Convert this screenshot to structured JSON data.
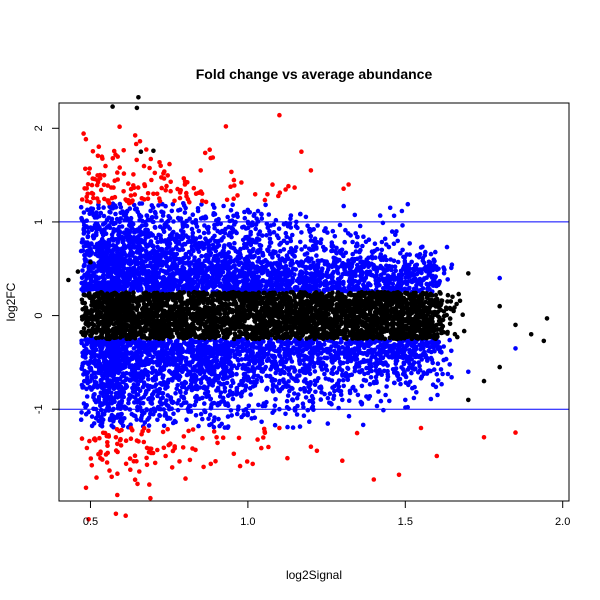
{
  "chart_data": {
    "type": "scatter",
    "title": "Fold change vs average abundance",
    "xlabel": "log2Signal",
    "ylabel": "log2FC",
    "xlim": [
      0.4,
      2.02
    ],
    "ylim": [
      -1.98,
      2.27
    ],
    "x_ticks": [
      "0.5",
      "1.0",
      "1.5",
      "2.0"
    ],
    "x_tick_values": [
      0.5,
      1.0,
      1.5,
      2.0
    ],
    "y_ticks": [
      "-1",
      "0",
      "1",
      "2"
    ],
    "y_tick_values": [
      -1,
      0,
      1,
      2
    ],
    "reference_lines": [
      {
        "axis": "y",
        "value": 1,
        "color": "#0000ff"
      },
      {
        "axis": "y",
        "value": -1,
        "color": "#0000ff"
      }
    ],
    "grid": false,
    "legend": "none",
    "series": [
      {
        "color": "#000000",
        "desc_points": [
          [
            0.43,
            0.38
          ],
          [
            0.46,
            0.47
          ],
          [
            0.5,
            0.57
          ],
          [
            0.55,
            0.2
          ],
          [
            0.6,
            0.05
          ],
          [
            1.7,
            0.45
          ],
          [
            1.8,
            0.1
          ],
          [
            1.85,
            -0.1
          ],
          [
            1.9,
            -0.2
          ],
          [
            1.95,
            -0.03
          ],
          [
            1.94,
            -0.27
          ],
          [
            1.8,
            -0.55
          ],
          [
            1.75,
            -0.7
          ],
          [
            1.7,
            -0.9
          ],
          [
            1.65,
            0.2
          ],
          [
            1.6,
            -0.1
          ],
          [
            0.66,
            1.75
          ],
          [
            0.7,
            1.76
          ]
        ]
      },
      {
        "color": "#0000ff",
        "desc_points": [
          [
            0.55,
            0.3
          ],
          [
            0.6,
            0.6
          ],
          [
            0.65,
            0.8
          ],
          [
            0.7,
            1.0
          ],
          [
            0.8,
            1.1
          ],
          [
            1.0,
            1.0
          ],
          [
            1.2,
            0.7
          ],
          [
            1.4,
            0.5
          ],
          [
            1.6,
            0.35
          ],
          [
            1.8,
            0.4
          ],
          [
            1.85,
            -0.35
          ],
          [
            1.7,
            -0.6
          ],
          [
            1.5,
            -0.9
          ],
          [
            1.3,
            -0.9
          ],
          [
            1.1,
            -1.0
          ],
          [
            0.9,
            -0.8
          ],
          [
            0.7,
            -0.5
          ]
        ]
      },
      {
        "color": "#ff0000",
        "desc_points": [
          [
            0.7,
            1.3
          ],
          [
            0.8,
            1.4
          ],
          [
            0.85,
            1.55
          ],
          [
            0.93,
            2.02
          ],
          [
            1.1,
            2.14
          ],
          [
            1.17,
            1.75
          ],
          [
            1.2,
            1.55
          ],
          [
            1.32,
            1.4
          ],
          [
            1.1,
            -1.2
          ],
          [
            1.2,
            -1.4
          ],
          [
            1.3,
            -1.55
          ],
          [
            1.4,
            -1.75
          ],
          [
            1.48,
            -1.7
          ],
          [
            1.6,
            -1.5
          ],
          [
            1.75,
            -1.3
          ],
          [
            1.85,
            -1.25
          ],
          [
            1.55,
            -1.2
          ]
        ]
      }
    ]
  }
}
